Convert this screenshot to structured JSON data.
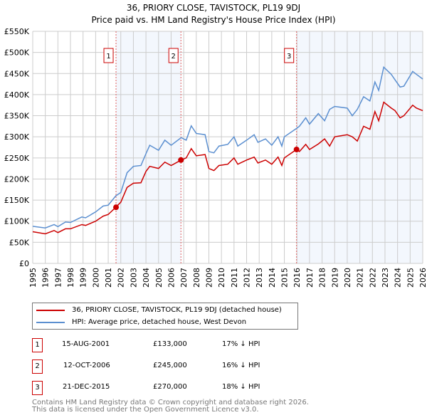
{
  "chart_data": {
    "type": "line",
    "title": "36, PRIORY CLOSE, TAVISTOCK, PL19 9DJ",
    "subtitle": "Price paid vs. HM Land Registry's House Price Index (HPI)",
    "xlim": [
      1995,
      2026
    ],
    "ylim": [
      0,
      550000
    ],
    "x_ticks": [
      "1995",
      "1996",
      "1997",
      "1998",
      "1999",
      "2000",
      "2001",
      "2002",
      "2003",
      "2004",
      "2005",
      "2006",
      "2007",
      "2008",
      "2009",
      "2010",
      "2011",
      "2012",
      "2013",
      "2014",
      "2015",
      "2016",
      "2017",
      "2018",
      "2019",
      "2020",
      "2021",
      "2022",
      "2023",
      "2024",
      "2025",
      "2026"
    ],
    "y_ticks": [
      {
        "v": 0,
        "label": "£0"
      },
      {
        "v": 50000,
        "label": "£50K"
      },
      {
        "v": 100000,
        "label": "£100K"
      },
      {
        "v": 150000,
        "label": "£150K"
      },
      {
        "v": 200000,
        "label": "£200K"
      },
      {
        "v": 250000,
        "label": "£250K"
      },
      {
        "v": 300000,
        "label": "£300K"
      },
      {
        "v": 350000,
        "label": "£350K"
      },
      {
        "v": 400000,
        "label": "£400K"
      },
      {
        "v": 450000,
        "label": "£450K"
      },
      {
        "v": 500000,
        "label": "£500K"
      },
      {
        "v": 550000,
        "label": "£550K"
      }
    ],
    "grid": true,
    "series": [
      {
        "name": "36, PRIORY CLOSE, TAVISTOCK, PL19 9DJ (detached house)",
        "color": "#cc0000",
        "x": [
          1995,
          1996,
          1996.7,
          1997,
          1997.6,
          1998,
          1998.9,
          1999.2,
          2000,
          2000.6,
          2001,
          2001.6,
          2002,
          2002.5,
          2003,
          2003.6,
          2004,
          2004.3,
          2005,
          2005.5,
          2006,
          2006.8,
          2007.2,
          2007.6,
          2008,
          2008.7,
          2009,
          2009.4,
          2009.8,
          2010.5,
          2011,
          2011.3,
          2012,
          2012.6,
          2012.9,
          2013.5,
          2014,
          2014.5,
          2014.8,
          2015,
          2015.97,
          2016.2,
          2016.7,
          2017,
          2017.7,
          2018.2,
          2018.6,
          2019,
          2020,
          2020.4,
          2020.8,
          2021.3,
          2021.8,
          2022.2,
          2022.5,
          2022.9,
          2023.5,
          2023.8,
          2024.2,
          2024.5,
          2025.2,
          2025.5,
          2026
        ],
        "y": [
          75000,
          70000,
          78000,
          73000,
          82000,
          82000,
          92000,
          90000,
          100000,
          112000,
          116000,
          133000,
          145000,
          180000,
          190000,
          191000,
          218000,
          230000,
          225000,
          240000,
          232000,
          245000,
          250000,
          272000,
          255000,
          258000,
          225000,
          220000,
          232000,
          235000,
          250000,
          235000,
          245000,
          252000,
          238000,
          245000,
          235000,
          252000,
          232000,
          250000,
          270000,
          265000,
          282000,
          270000,
          283000,
          295000,
          278000,
          300000,
          305000,
          300000,
          290000,
          325000,
          318000,
          360000,
          338000,
          382000,
          368000,
          362000,
          345000,
          350000,
          375000,
          368000,
          362000
        ]
      },
      {
        "name": "HPI: Average price, detached house, West Devon",
        "color": "#5b8fd0",
        "x": [
          1995,
          1996,
          1996.7,
          1997,
          1997.6,
          1998,
          1998.9,
          1999.2,
          2000,
          2000.6,
          2001,
          2001.6,
          2002,
          2002.5,
          2003,
          2003.6,
          2004,
          2004.3,
          2005,
          2005.5,
          2006,
          2006.8,
          2007.2,
          2007.6,
          2008,
          2008.7,
          2009,
          2009.4,
          2009.8,
          2010.5,
          2011,
          2011.3,
          2012,
          2012.6,
          2012.9,
          2013.5,
          2014,
          2014.5,
          2014.8,
          2015,
          2015.97,
          2016.2,
          2016.7,
          2017,
          2017.7,
          2018.2,
          2018.6,
          2019,
          2020,
          2020.4,
          2020.8,
          2021.3,
          2021.8,
          2022.2,
          2022.5,
          2022.9,
          2023.5,
          2023.8,
          2024.2,
          2024.5,
          2025.2,
          2025.5,
          2026
        ],
        "y": [
          88000,
          84000,
          92000,
          87000,
          98000,
          97000,
          110000,
          108000,
          122000,
          136000,
          138000,
          160000,
          168000,
          215000,
          230000,
          232000,
          260000,
          280000,
          268000,
          292000,
          280000,
          298000,
          292000,
          326000,
          308000,
          305000,
          265000,
          262000,
          278000,
          282000,
          300000,
          278000,
          292000,
          305000,
          287000,
          295000,
          280000,
          300000,
          278000,
          300000,
          320000,
          325000,
          345000,
          330000,
          355000,
          338000,
          365000,
          372000,
          368000,
          350000,
          365000,
          395000,
          385000,
          430000,
          410000,
          465000,
          448000,
          435000,
          418000,
          420000,
          455000,
          448000,
          437000
        ]
      }
    ],
    "sales": [
      {
        "label": "1",
        "x": 2001.62,
        "y": 133000
      },
      {
        "label": "2",
        "x": 2006.78,
        "y": 245000
      },
      {
        "label": "3",
        "x": 2015.97,
        "y": 270000
      }
    ]
  },
  "legend": {
    "items": [
      "36, PRIORY CLOSE, TAVISTOCK, PL19 9DJ (detached house)",
      "HPI: Average price, detached house, West Devon"
    ]
  },
  "transactions": [
    {
      "num": "1",
      "date": "15-AUG-2001",
      "price": "£133,000",
      "hpi": "17% ↓ HPI"
    },
    {
      "num": "2",
      "date": "12-OCT-2006",
      "price": "£245,000",
      "hpi": "16% ↓ HPI"
    },
    {
      "num": "3",
      "date": "21-DEC-2015",
      "price": "£270,000",
      "hpi": "18% ↓ HPI"
    }
  ],
  "footer": {
    "line1": "Contains HM Land Registry data © Crown copyright and database right 2026.",
    "line2": "This data is licensed under the Open Government Licence v3.0."
  }
}
